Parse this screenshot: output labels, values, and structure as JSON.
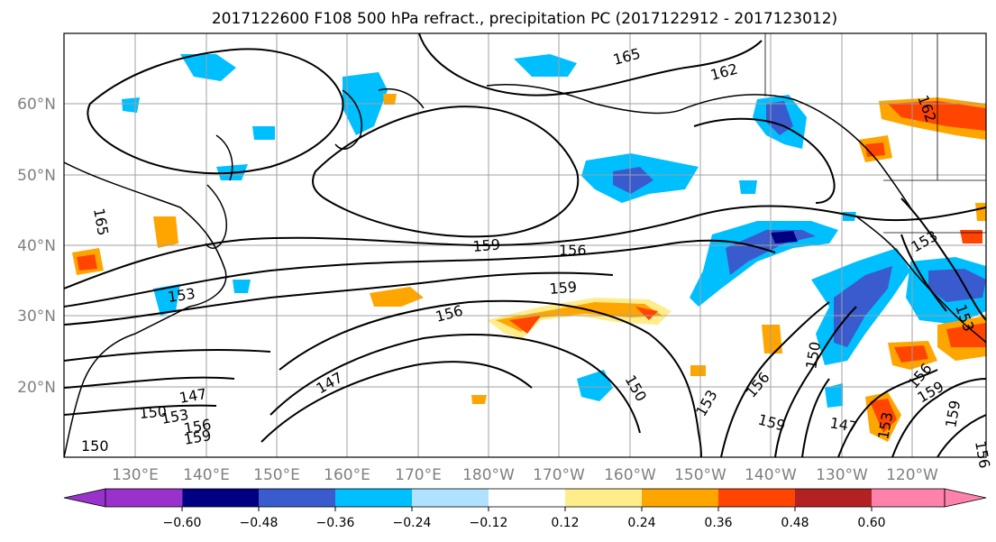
{
  "title": "2017122600 F108 500 hPa refract., precipitation PC (2017122912 - 2017123012)",
  "lon_labels": [
    "130°E",
    "140°E",
    "150°E",
    "160°E",
    "170°E",
    "180°W",
    "170°W",
    "160°W",
    "150°W",
    "140°W",
    "130°W",
    "120°W"
  ],
  "lat_labels": [
    "60°N",
    "50°N",
    "40°N",
    "30°N",
    "20°N"
  ],
  "colorbar": {
    "ticks": [
      "−0.60",
      "−0.48",
      "−0.36",
      "−0.24",
      "−0.12",
      "0.12",
      "0.24",
      "0.36",
      "0.48",
      "0.60"
    ],
    "colors": [
      "#9932cc",
      "#000080",
      "#3a5bcd",
      "#00bfff",
      "#b0e2ff",
      "#ffffff",
      "#ffec8b",
      "#ffa500",
      "#ff4500",
      "#b22222",
      "#ff82ab"
    ]
  },
  "contour_labels": [
    "165",
    "162",
    "165",
    "159",
    "156",
    "159",
    "153",
    "156",
    "150",
    "147",
    "153",
    "156",
    "159",
    "150",
    "147",
    "150",
    "153",
    "156",
    "159",
    "147",
    "153",
    "156",
    "159",
    "159",
    "153",
    "156",
    "162",
    "150",
    "153"
  ]
}
